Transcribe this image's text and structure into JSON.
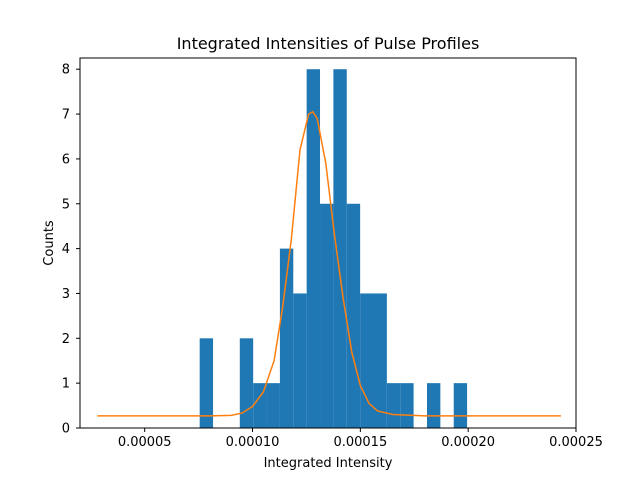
{
  "chart_data": {
    "type": "bar",
    "title": "Integrated Intensities of Pulse Profiles",
    "xlabel": "Integrated Intensity",
    "ylabel": "Counts",
    "xlim": [
      2e-05,
      0.00025
    ],
    "ylim": [
      0,
      8.25
    ],
    "xticks": [
      {
        "value": 5e-05,
        "label": "0.00005"
      },
      {
        "value": 0.0001,
        "label": "0.00010"
      },
      {
        "value": 0.00015,
        "label": "0.00015"
      },
      {
        "value": 0.0002,
        "label": "0.00020"
      },
      {
        "value": 0.00025,
        "label": "0.00025"
      }
    ],
    "yticks": [
      {
        "value": 0,
        "label": "0"
      },
      {
        "value": 1,
        "label": "1"
      },
      {
        "value": 2,
        "label": "2"
      },
      {
        "value": 3,
        "label": "3"
      },
      {
        "value": 4,
        "label": "4"
      },
      {
        "value": 5,
        "label": "5"
      },
      {
        "value": 6,
        "label": "6"
      },
      {
        "value": 7,
        "label": "7"
      },
      {
        "value": 8,
        "label": "8"
      }
    ],
    "grid": false,
    "histogram": {
      "color": "#1f77b4",
      "bin_width": 6.2e-06,
      "bins": [
        {
          "x0": 7.55e-05,
          "count": 2
        },
        {
          "x0": 9.41e-05,
          "count": 2
        },
        {
          "x0": 0.0001003,
          "count": 1
        },
        {
          "x0": 0.0001065,
          "count": 1
        },
        {
          "x0": 0.0001127,
          "count": 4
        },
        {
          "x0": 0.0001189,
          "count": 3
        },
        {
          "x0": 0.0001251,
          "count": 8
        },
        {
          "x0": 0.0001313,
          "count": 5
        },
        {
          "x0": 0.0001375,
          "count": 8
        },
        {
          "x0": 0.0001437,
          "count": 5
        },
        {
          "x0": 0.0001499,
          "count": 3
        },
        {
          "x0": 0.0001561,
          "count": 3
        },
        {
          "x0": 0.0001623,
          "count": 1
        },
        {
          "x0": 0.0001685,
          "count": 1
        },
        {
          "x0": 0.0001809,
          "count": 1
        },
        {
          "x0": 0.0001933,
          "count": 1
        }
      ]
    },
    "fit_curve": {
      "color": "#ff7f0e",
      "x": [
        2.8e-05,
        4e-05,
        5e-05,
        6e-05,
        7e-05,
        8e-05,
        9e-05,
        9.5e-05,
        0.0001,
        0.000105,
        0.00011,
        0.000114,
        0.000118,
        0.000122,
        0.000126,
        0.000128,
        0.00013,
        0.000134,
        0.000138,
        0.000142,
        0.000146,
        0.00015,
        0.000154,
        0.000158,
        0.000165,
        0.00018,
        0.0002,
        0.00022,
        0.000243
      ],
      "y": [
        0.27,
        0.27,
        0.27,
        0.27,
        0.27,
        0.27,
        0.28,
        0.33,
        0.48,
        0.8,
        1.5,
        2.7,
        4.2,
        6.2,
        7.0,
        7.05,
        6.9,
        5.9,
        4.3,
        2.9,
        1.7,
        0.95,
        0.55,
        0.38,
        0.3,
        0.27,
        0.27,
        0.27,
        0.27
      ]
    }
  }
}
